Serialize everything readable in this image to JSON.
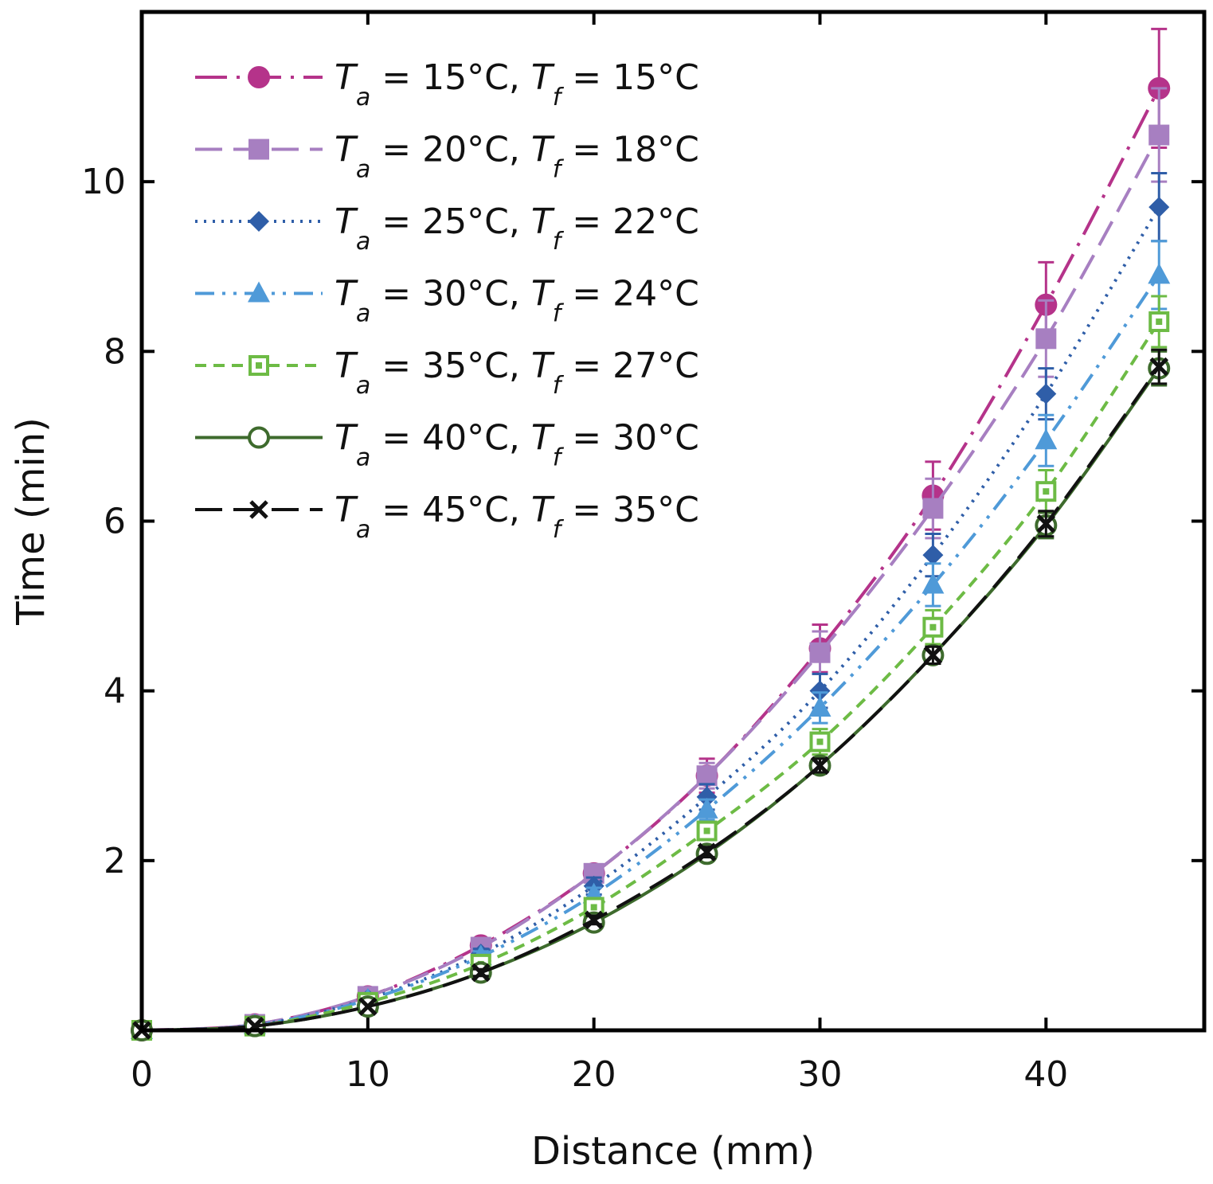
{
  "chart_data": {
    "type": "line",
    "title": "",
    "xlabel": "Distance (mm)",
    "ylabel": "Time (min)",
    "xlim": [
      0,
      47
    ],
    "ylim": [
      0,
      12
    ],
    "x_ticks": [
      "0",
      "10",
      "20",
      "30",
      "40"
    ],
    "x_tick_values": [
      0,
      10,
      20,
      30,
      40
    ],
    "y_ticks": [
      "2",
      "4",
      "6",
      "8",
      "10"
    ],
    "y_tick_values": [
      2,
      4,
      6,
      8,
      10
    ],
    "grid": false,
    "legend_position": "top-left",
    "x": [
      0,
      5,
      10,
      15,
      20,
      25,
      30,
      35,
      40,
      45
    ],
    "series": [
      {
        "name": "T_a = 15°C, T_f = 15°C",
        "label_parts": [
          "T",
          "a",
          " = 15°C, ",
          "T",
          "f",
          " = 15°C"
        ],
        "color": "#b5338a",
        "marker": "circle-filled",
        "line": "dash-dot-long",
        "values": [
          0.0,
          0.07,
          0.4,
          1.0,
          1.85,
          3.0,
          4.5,
          6.3,
          8.55,
          11.1
        ],
        "errors": [
          0.0,
          0.02,
          0.04,
          0.07,
          0.1,
          0.2,
          0.28,
          0.4,
          0.5,
          0.7
        ]
      },
      {
        "name": "T_a = 20°C, T_f = 18°C",
        "label_parts": [
          "T",
          "a",
          " = 20°C, ",
          "T",
          "f",
          " = 18°C"
        ],
        "color": "#a77fc1",
        "marker": "square-filled",
        "line": "long-dash",
        "values": [
          0.0,
          0.07,
          0.4,
          0.98,
          1.85,
          3.0,
          4.45,
          6.15,
          8.15,
          10.55
        ],
        "errors": [
          0.0,
          0.02,
          0.04,
          0.07,
          0.1,
          0.15,
          0.25,
          0.35,
          0.45,
          0.55
        ]
      },
      {
        "name": "T_a = 25°C, T_f = 22°C",
        "label_parts": [
          "T",
          "a",
          " = 25°C, ",
          "T",
          "f",
          " = 22°C"
        ],
        "color": "#2f5ea8",
        "marker": "diamond-filled",
        "line": "dotted",
        "values": [
          0.0,
          0.06,
          0.37,
          0.9,
          1.7,
          2.75,
          4.0,
          5.6,
          7.5,
          9.7
        ],
        "errors": [
          0.0,
          0.02,
          0.04,
          0.06,
          0.1,
          0.15,
          0.2,
          0.25,
          0.3,
          0.4
        ]
      },
      {
        "name": "T_a = 30°C, T_f = 24°C",
        "label_parts": [
          "T",
          "a",
          " = 30°C, ",
          "T",
          "f",
          " = 24°C"
        ],
        "color": "#4f9ad8",
        "marker": "triangle-filled",
        "line": "dash-dot-dot",
        "values": [
          0.0,
          0.06,
          0.36,
          0.87,
          1.6,
          2.6,
          3.8,
          5.25,
          6.95,
          8.9
        ],
        "errors": [
          0.0,
          0.02,
          0.04,
          0.06,
          0.08,
          0.12,
          0.18,
          0.25,
          0.3,
          0.4
        ]
      },
      {
        "name": "T_a = 35°C, T_f = 27°C",
        "label_parts": [
          "T",
          "a",
          " = 35°C, ",
          "T",
          "f",
          " = 27°C"
        ],
        "color": "#6dbb45",
        "marker": "square-open-dot",
        "line": "short-dash",
        "values": [
          0.0,
          0.05,
          0.33,
          0.78,
          1.45,
          2.35,
          3.4,
          4.75,
          6.35,
          8.35
        ],
        "errors": [
          0.0,
          0.02,
          0.03,
          0.05,
          0.07,
          0.1,
          0.15,
          0.2,
          0.25,
          0.3
        ]
      },
      {
        "name": "T_a = 40°C, T_f = 30°C",
        "label_parts": [
          "T",
          "a",
          " = 40°C, ",
          "T",
          "f",
          " = 30°C"
        ],
        "color": "#3e6b2d",
        "marker": "circle-open",
        "line": "solid",
        "values": [
          0.0,
          0.05,
          0.28,
          0.68,
          1.27,
          2.08,
          3.12,
          4.42,
          5.95,
          7.8
        ],
        "errors": [
          0.0,
          0.02,
          0.03,
          0.04,
          0.05,
          0.06,
          0.08,
          0.1,
          0.15,
          0.2
        ]
      },
      {
        "name": "T_a = 45°C, T_f = 35°C",
        "label_parts": [
          "T",
          "a",
          " = 45°C, ",
          "T",
          "f",
          " = 35°C"
        ],
        "color": "#111111",
        "marker": "x",
        "line": "long-dash",
        "values": [
          0.0,
          0.05,
          0.28,
          0.68,
          1.3,
          2.1,
          3.12,
          4.42,
          5.97,
          7.82
        ],
        "errors": [
          0.0,
          0.02,
          0.03,
          0.04,
          0.05,
          0.06,
          0.08,
          0.1,
          0.15,
          0.2
        ]
      }
    ]
  }
}
